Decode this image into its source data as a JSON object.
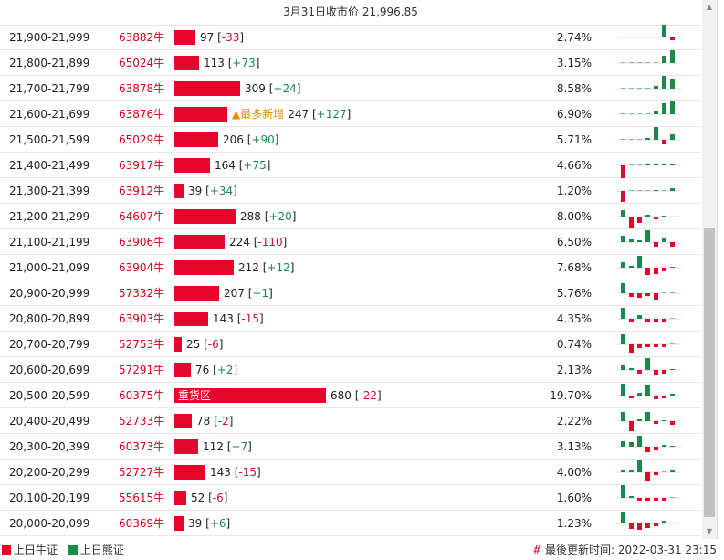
{
  "header": {
    "title": "3月31日收市价 21,996.85"
  },
  "colors": {
    "bull": "#e4062b",
    "bear": "#1a8a4a"
  },
  "rows": [
    {
      "range": "21,900-21,999",
      "code": "63882牛",
      "tag": "",
      "count": "97",
      "change": "-33",
      "pct": "2.74%",
      "share": 2.74,
      "spark": [
        0,
        0,
        0,
        0,
        0,
        16,
        -3
      ]
    },
    {
      "range": "21,800-21,899",
      "code": "65024牛",
      "tag": "",
      "count": "113",
      "change": "+73",
      "pct": "3.15%",
      "share": 3.15,
      "spark": [
        0,
        0,
        0,
        0,
        0,
        8,
        14
      ]
    },
    {
      "range": "21,700-21,799",
      "code": "63878牛",
      "tag": "",
      "count": "309",
      "change": "+24",
      "pct": "8.58%",
      "share": 8.58,
      "spark": [
        0,
        0,
        0,
        0,
        3,
        14,
        10
      ]
    },
    {
      "range": "21,600-21,699",
      "code": "63876牛",
      "tag": "▲最多新增",
      "count": "247",
      "change": "+127",
      "pct": "6.90%",
      "share": 6.9,
      "spark": [
        0,
        0,
        0,
        0,
        4,
        12,
        14
      ]
    },
    {
      "range": "21,500-21,599",
      "code": "65029牛",
      "tag": "",
      "count": "206",
      "change": "+90",
      "pct": "5.71%",
      "share": 5.71,
      "spark": [
        0,
        0,
        0,
        2,
        14,
        -5,
        6
      ]
    },
    {
      "range": "21,400-21,499",
      "code": "63917牛",
      "tag": "",
      "count": "164",
      "change": "+75",
      "pct": "4.66%",
      "share": 4.66,
      "spark": [
        -14,
        0,
        0,
        1,
        1,
        1,
        2
      ]
    },
    {
      "range": "21,300-21,399",
      "code": "63912牛",
      "tag": "",
      "count": "39",
      "change": "+34",
      "pct": "1.20%",
      "share": 1.2,
      "spark": [
        -12,
        0,
        0,
        0,
        1,
        0,
        3
      ]
    },
    {
      "range": "21,200-21,299",
      "code": "64607牛",
      "tag": "",
      "count": "288",
      "change": "+20",
      "pct": "8.00%",
      "share": 8.0,
      "spark": [
        7,
        -13,
        -7,
        2,
        -3,
        1,
        -1
      ]
    },
    {
      "range": "21,100-21,199",
      "code": "63906牛",
      "tag": "",
      "count": "224",
      "change": "-110",
      "pct": "6.50%",
      "share": 6.5,
      "spark": [
        7,
        3,
        2,
        13,
        -5,
        5,
        -5
      ]
    },
    {
      "range": "21,000-21,099",
      "code": "63904牛",
      "tag": "",
      "count": "212",
      "change": "+12",
      "pct": "7.68%",
      "share": 7.68,
      "spark": [
        6,
        2,
        13,
        -8,
        -7,
        -4,
        1
      ]
    },
    {
      "range": "20,900-20,999",
      "code": "57332牛",
      "tag": "",
      "count": "207",
      "change": "+1",
      "pct": "5.76%",
      "share": 5.76,
      "spark": [
        11,
        -4,
        -5,
        -3,
        -7,
        0,
        0
      ]
    },
    {
      "range": "20,800-20,899",
      "code": "63903牛",
      "tag": "",
      "count": "143",
      "change": "-15",
      "pct": "4.35%",
      "share": 4.35,
      "spark": [
        12,
        -4,
        4,
        -4,
        -3,
        -3,
        0
      ]
    },
    {
      "range": "20,700-20,799",
      "code": "52753牛",
      "tag": "",
      "count": "25",
      "change": "-6",
      "pct": "0.74%",
      "share": 0.74,
      "spark": [
        11,
        -9,
        -4,
        -3,
        -3,
        -3,
        0
      ]
    },
    {
      "range": "20,600-20,699",
      "code": "57291牛",
      "tag": "",
      "count": "76",
      "change": "+2",
      "pct": "2.13%",
      "share": 2.13,
      "spark": [
        6,
        2,
        -4,
        13,
        -5,
        -4,
        1
      ]
    },
    {
      "range": "20,500-20,599",
      "code": "60375牛",
      "tag": "",
      "count": "680",
      "change": "-22",
      "pct": "19.70%",
      "share": 19.7,
      "inbar": "重货区",
      "spark": [
        13,
        -3,
        3,
        12,
        -4,
        -3,
        2
      ]
    },
    {
      "range": "20,400-20,499",
      "code": "52733牛",
      "tag": "",
      "count": "78",
      "change": "-2",
      "pct": "2.22%",
      "share": 2.22,
      "spark": [
        10,
        -11,
        2,
        10,
        -3,
        1,
        -4
      ]
    },
    {
      "range": "20,300-20,399",
      "code": "60373牛",
      "tag": "",
      "count": "112",
      "change": "+7",
      "pct": "3.13%",
      "share": 3.13,
      "spark": [
        6,
        5,
        12,
        -6,
        -4,
        2,
        1
      ]
    },
    {
      "range": "20,200-20,299",
      "code": "52727牛",
      "tag": "",
      "count": "143",
      "change": "-15",
      "pct": "4.00%",
      "share": 4.0,
      "spark": [
        3,
        2,
        13,
        -9,
        -3,
        0,
        2
      ]
    },
    {
      "range": "20,100-20,199",
      "code": "55615牛",
      "tag": "",
      "count": "52",
      "change": "-6",
      "pct": "1.60%",
      "share": 1.6,
      "spark": [
        14,
        2,
        -3,
        -3,
        -3,
        -3,
        0
      ]
    },
    {
      "range": "20,000-20,099",
      "code": "60369牛",
      "tag": "",
      "count": "39",
      "change": "+6",
      "pct": "1.23%",
      "share": 1.23,
      "spark": [
        13,
        -6,
        -7,
        -5,
        -3,
        3,
        1
      ]
    }
  ],
  "footer": {
    "bull_label": "上日牛证",
    "bear_label": "上日熊证",
    "updated_hash": "#",
    "updated_text": "最後更新时间: 2022-03-31 23:15"
  }
}
